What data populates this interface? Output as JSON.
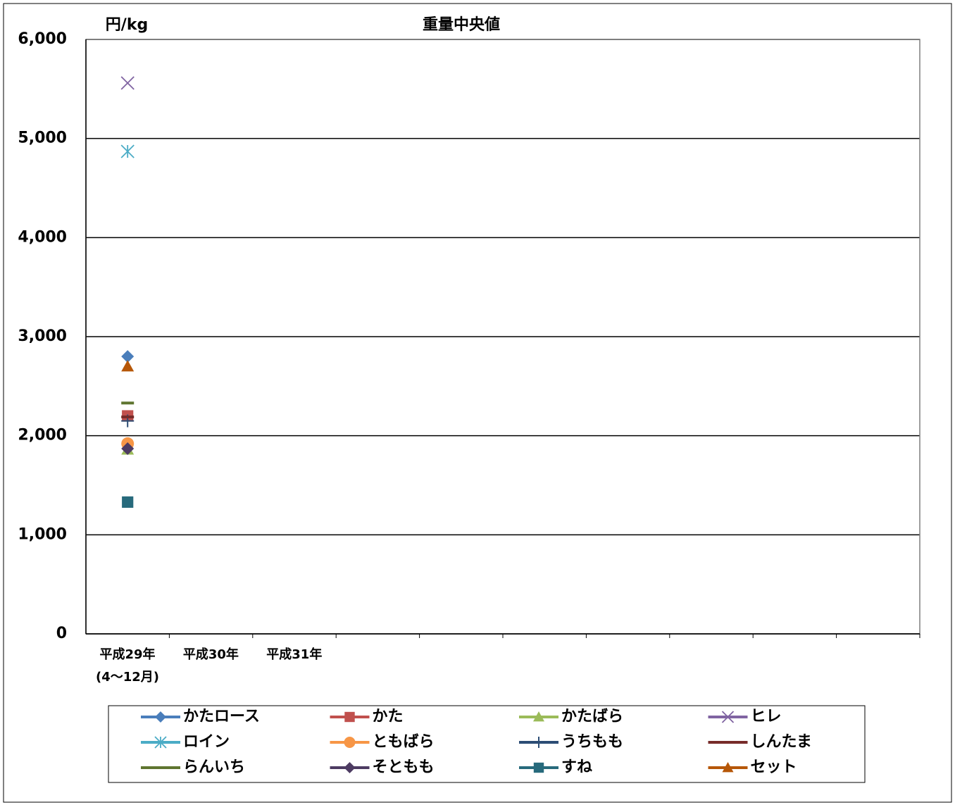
{
  "chart_data": {
    "type": "line",
    "title": "重量中央値",
    "y_label": "円/kg",
    "categories": [
      "平成29年\n(4～12月)",
      "平成30年",
      "平成31年",
      null,
      null,
      null,
      null,
      null,
      null,
      null
    ],
    "ylim": [
      0,
      6000
    ],
    "yticks": [
      0,
      {
        "value": 1000,
        "label": "1,000"
      },
      {
        "value": 2000,
        "label": "2,000"
      },
      {
        "value": 3000,
        "label": "3,000"
      },
      {
        "value": 4000,
        "label": "4,000"
      },
      {
        "value": 5000,
        "label": "5,000"
      },
      {
        "value": 6000,
        "label": "6,000"
      }
    ],
    "grid": true,
    "legend": "bottom",
    "series": [
      {
        "name": "かたロース",
        "color": "#4a7ebb",
        "marker": "diamond",
        "values": [
          2800,
          null,
          null,
          null,
          null,
          null,
          null,
          null,
          null,
          null
        ]
      },
      {
        "name": "かた",
        "color": "#c0504d",
        "marker": "square",
        "values": [
          2200,
          null,
          null,
          null,
          null,
          null,
          null,
          null,
          null,
          null
        ]
      },
      {
        "name": "かたばら",
        "color": "#9bbb59",
        "marker": "triangle",
        "values": [
          1860,
          null,
          null,
          null,
          null,
          null,
          null,
          null,
          null,
          null
        ]
      },
      {
        "name": "ヒレ",
        "color": "#8064a2",
        "marker": "x",
        "values": [
          5560,
          null,
          null,
          null,
          null,
          null,
          null,
          null,
          null,
          null
        ]
      },
      {
        "name": "ロイン",
        "color": "#4bacc6",
        "marker": "star",
        "values": [
          4870,
          null,
          null,
          null,
          null,
          null,
          null,
          null,
          null,
          null
        ]
      },
      {
        "name": "ともばら",
        "color": "#f79646",
        "marker": "circle",
        "values": [
          1920,
          null,
          null,
          null,
          null,
          null,
          null,
          null,
          null,
          null
        ]
      },
      {
        "name": "うちもも",
        "color": "#2c4d75",
        "marker": "plus",
        "values": [
          2150,
          null,
          null,
          null,
          null,
          null,
          null,
          null,
          null,
          null
        ]
      },
      {
        "name": "しんたま",
        "color": "#772c2a",
        "marker": "dash",
        "values": [
          2190,
          null,
          null,
          null,
          null,
          null,
          null,
          null,
          null,
          null
        ]
      },
      {
        "name": "らんいち",
        "color": "#5f7530",
        "marker": "dash",
        "values": [
          2330,
          null,
          null,
          null,
          null,
          null,
          null,
          null,
          null,
          null
        ]
      },
      {
        "name": "そともも",
        "color": "#4d3b62",
        "marker": "diamond",
        "values": [
          1870,
          null,
          null,
          null,
          null,
          null,
          null,
          null,
          null,
          null
        ]
      },
      {
        "name": "すね",
        "color": "#276a7c",
        "marker": "square",
        "values": [
          1330,
          null,
          null,
          null,
          null,
          null,
          null,
          null,
          null,
          null
        ]
      },
      {
        "name": "セット",
        "color": "#b65708",
        "marker": "triangle",
        "values": [
          2700,
          null,
          null,
          null,
          null,
          null,
          null,
          null,
          null,
          null
        ]
      }
    ]
  }
}
